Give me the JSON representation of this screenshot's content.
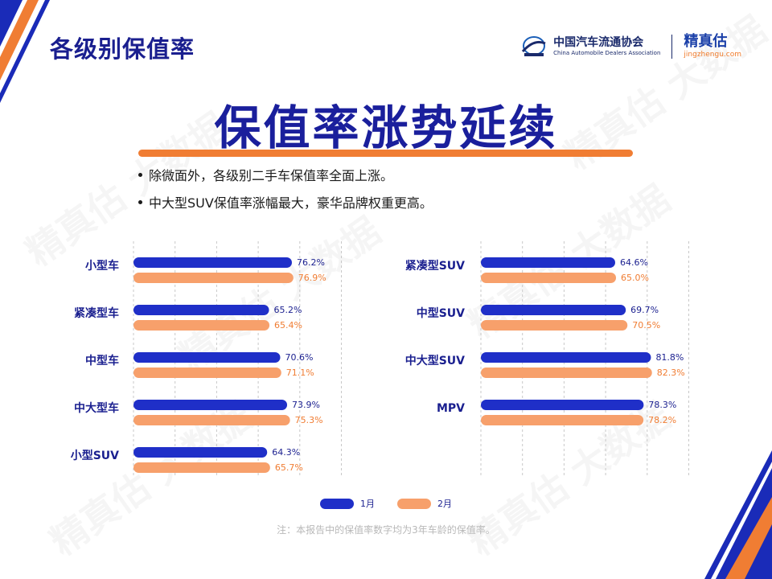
{
  "page_title": "各级别保值率",
  "logos": {
    "association_cn": "中国汽车流通协会",
    "association_en": "China Automobile Dealers Association",
    "brand_cn": "精真估",
    "brand_en": "jingzhengu.com"
  },
  "headline": "保值率涨势延续",
  "bullets": [
    "除微面外，各级别二手车保值率全面上涨。",
    "中大型SUV保值率涨幅最大，豪华品牌权重更高。"
  ],
  "footnote": "注：本报告中的保值率数字均为3年车龄的保值率。",
  "watermark": "精真估 大数据",
  "colors": {
    "navy": "#1a1f9c",
    "orange": "#f07d33",
    "jan_bar": "#1f2fc8",
    "feb_bar": "#f7a06b"
  },
  "chart_data": [
    {
      "type": "bar",
      "orientation": "horizontal",
      "categories": [
        "小型车",
        "紧凑型车",
        "中型车",
        "中大型车",
        "小型SUV"
      ],
      "series": [
        {
          "name": "1月",
          "values": [
            76.2,
            65.2,
            70.6,
            73.9,
            64.3
          ],
          "labels": [
            "76.2%",
            "65.2%",
            "70.6%",
            "73.9%",
            "64.3%"
          ]
        },
        {
          "name": "2月",
          "values": [
            76.9,
            65.4,
            71.1,
            75.3,
            65.7
          ],
          "labels": [
            "76.9%",
            "65.4%",
            "71.1%",
            "75.3%",
            "65.7%"
          ]
        }
      ],
      "xlim": [
        0,
        100
      ],
      "grid": true
    },
    {
      "type": "bar",
      "orientation": "horizontal",
      "categories": [
        "紧凑型SUV",
        "中型SUV",
        "中大型SUV",
        "MPV"
      ],
      "series": [
        {
          "name": "1月",
          "values": [
            64.6,
            69.7,
            81.8,
            78.3
          ],
          "labels": [
            "64.6%",
            "69.7%",
            "81.8%",
            "78.3%"
          ]
        },
        {
          "name": "2月",
          "values": [
            65.0,
            70.5,
            82.3,
            78.2
          ],
          "labels": [
            "65.0%",
            "70.5%",
            "82.3%",
            "78.2%"
          ]
        }
      ],
      "xlim": [
        0,
        100
      ],
      "grid": true
    }
  ],
  "legend": [
    {
      "label": "1月",
      "color": "#1f2fc8"
    },
    {
      "label": "2月",
      "color": "#f7a06b"
    }
  ]
}
